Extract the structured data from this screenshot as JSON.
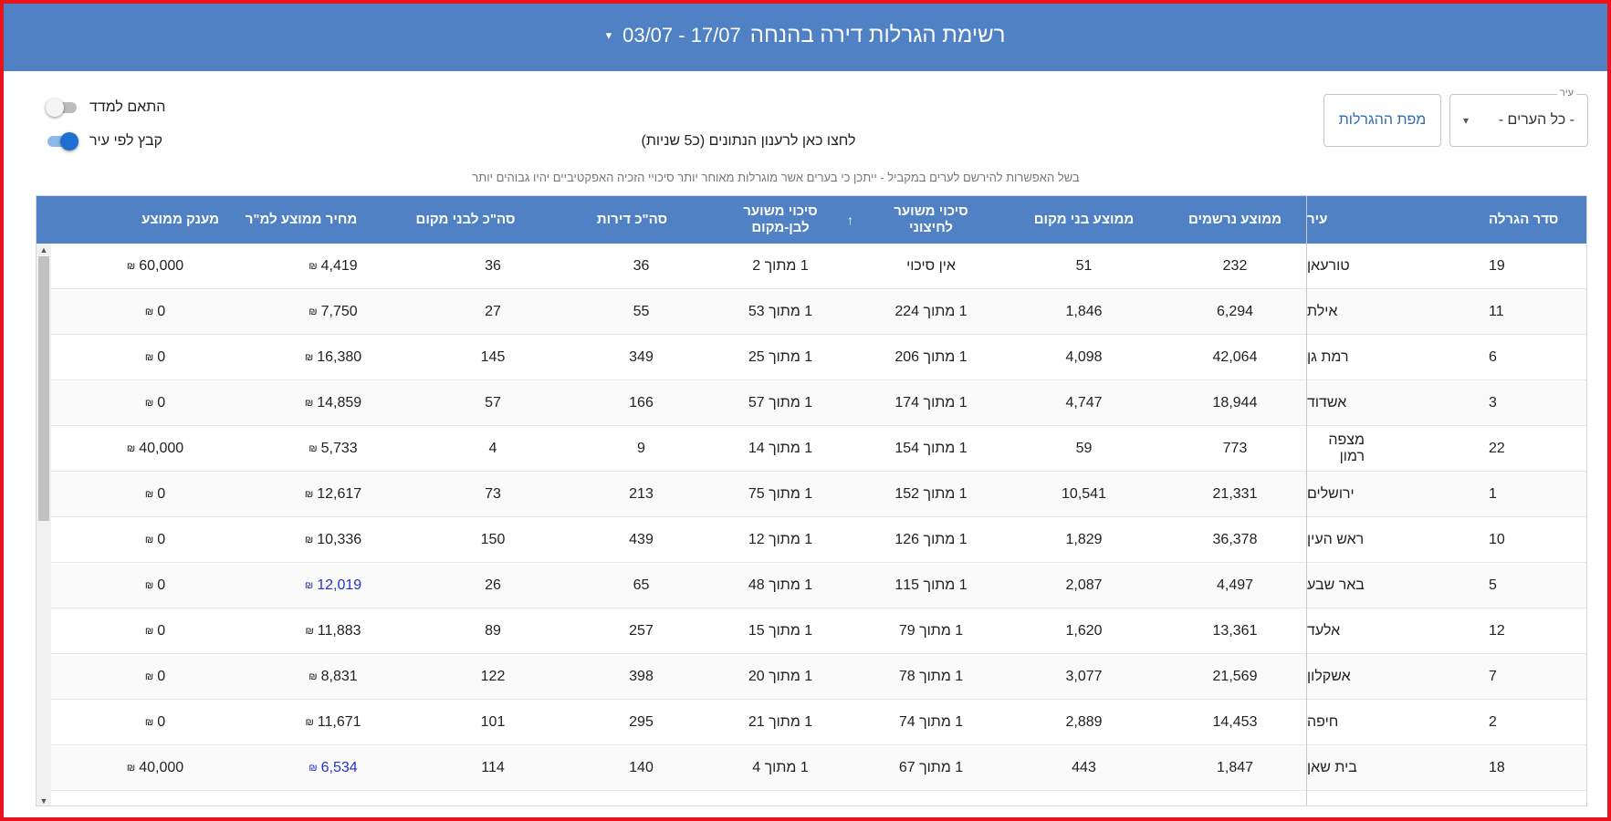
{
  "header": {
    "title": "רשימת הגרלות דירה בהנחה",
    "date_range": "03/07 - 17/07",
    "caret": "▾"
  },
  "controls": {
    "city_select": {
      "label": "עיר",
      "value": "- כל הערים -",
      "arrow": "▾"
    },
    "map_button": "מפת ההגרלות",
    "toggle_index": {
      "label": "התאם למדד",
      "state": "off"
    },
    "toggle_group_city": {
      "label": "קבץ לפי עיר",
      "state": "on"
    },
    "data_link": "לחצו כאן לרענון הנתונים (כ5 שניות)",
    "notice": "בשל האפשרות להירשם לערים במקביל - ייתכן כי בערים אשר מוגרלות מאוחר יותר סיכויי הזכיה האפקטיביים יהיו גבוהים יותר"
  },
  "table": {
    "sort_arrow": "↑",
    "columns": {
      "order": "סדר הגרלה",
      "city": "עיר",
      "avg_registered": "ממוצע נרשמים",
      "avg_locals": "ממוצע בני מקום",
      "chance_outside_1": "סיכוי משוער",
      "chance_outside_2": "לחיצוני",
      "chance_local_1": "סיכוי משוער",
      "chance_local_2": "לבן-מקום",
      "total_apartments": "סה\"כ דירות",
      "total_locals": "סה\"כ לבני מקום",
      "avg_price": "מחיר ממוצע למ\"ר",
      "avg_grant": "מענק ממוצע"
    },
    "rows": [
      {
        "order": "19",
        "city": "טורעאן",
        "avg_registered": "232",
        "avg_locals": "51",
        "chance_outside": "אין סיכוי",
        "chance_local": "1 מתוך 2",
        "total_apartments": "36",
        "total_locals": "36",
        "avg_price": "4,419",
        "price_link": false,
        "avg_grant": "60,000"
      },
      {
        "order": "11",
        "city": "אילת",
        "avg_registered": "6,294",
        "avg_locals": "1,846",
        "chance_outside": "1 מתוך 224",
        "chance_local": "1 מתוך 53",
        "total_apartments": "55",
        "total_locals": "27",
        "avg_price": "7,750",
        "price_link": false,
        "avg_grant": "0"
      },
      {
        "order": "6",
        "city": "רמת גן",
        "avg_registered": "42,064",
        "avg_locals": "4,098",
        "chance_outside": "1 מתוך 206",
        "chance_local": "1 מתוך 25",
        "total_apartments": "349",
        "total_locals": "145",
        "avg_price": "16,380",
        "price_link": false,
        "avg_grant": "0"
      },
      {
        "order": "3",
        "city": "אשדוד",
        "avg_registered": "18,944",
        "avg_locals": "4,747",
        "chance_outside": "1 מתוך 174",
        "chance_local": "1 מתוך 57",
        "total_apartments": "166",
        "total_locals": "57",
        "avg_price": "14,859",
        "price_link": false,
        "avg_grant": "0"
      },
      {
        "order": "22",
        "city": "מצפה רמון",
        "avg_registered": "773",
        "avg_locals": "59",
        "chance_outside": "1 מתוך 154",
        "chance_local": "1 מתוך 14",
        "total_apartments": "9",
        "total_locals": "4",
        "avg_price": "5,733",
        "price_link": false,
        "avg_grant": "40,000"
      },
      {
        "order": "1",
        "city": "ירושלים",
        "avg_registered": "21,331",
        "avg_locals": "10,541",
        "chance_outside": "1 מתוך 152",
        "chance_local": "1 מתוך 75",
        "total_apartments": "213",
        "total_locals": "73",
        "avg_price": "12,617",
        "price_link": false,
        "avg_grant": "0"
      },
      {
        "order": "10",
        "city": "ראש העין",
        "avg_registered": "36,378",
        "avg_locals": "1,829",
        "chance_outside": "1 מתוך 126",
        "chance_local": "1 מתוך 12",
        "total_apartments": "439",
        "total_locals": "150",
        "avg_price": "10,336",
        "price_link": false,
        "avg_grant": "0"
      },
      {
        "order": "5",
        "city": "באר שבע",
        "avg_registered": "4,497",
        "avg_locals": "2,087",
        "chance_outside": "1 מתוך 115",
        "chance_local": "1 מתוך 48",
        "total_apartments": "65",
        "total_locals": "26",
        "avg_price": "12,019",
        "price_link": true,
        "avg_grant": "0"
      },
      {
        "order": "12",
        "city": "אלעד",
        "avg_registered": "13,361",
        "avg_locals": "1,620",
        "chance_outside": "1 מתוך 79",
        "chance_local": "1 מתוך 15",
        "total_apartments": "257",
        "total_locals": "89",
        "avg_price": "11,883",
        "price_link": false,
        "avg_grant": "0"
      },
      {
        "order": "7",
        "city": "אשקלון",
        "avg_registered": "21,569",
        "avg_locals": "3,077",
        "chance_outside": "1 מתוך 78",
        "chance_local": "1 מתוך 20",
        "total_apartments": "398",
        "total_locals": "122",
        "avg_price": "8,831",
        "price_link": false,
        "avg_grant": "0"
      },
      {
        "order": "2",
        "city": "חיפה",
        "avg_registered": "14,453",
        "avg_locals": "2,889",
        "chance_outside": "1 מתוך 74",
        "chance_local": "1 מתוך 21",
        "total_apartments": "295",
        "total_locals": "101",
        "avg_price": "11,671",
        "price_link": false,
        "avg_grant": "0"
      },
      {
        "order": "18",
        "city": "בית שאן",
        "avg_registered": "1,847",
        "avg_locals": "443",
        "chance_outside": "1 מתוך 67",
        "chance_local": "1 מתוך 4",
        "total_apartments": "140",
        "total_locals": "114",
        "avg_price": "6,534",
        "price_link": true,
        "avg_grant": "40,000"
      }
    ]
  },
  "currency_symbol": "₪",
  "colors": {
    "header_blue": "#4f81c4",
    "link_blue": "#2432c8",
    "frame_red": "#e8141c"
  }
}
